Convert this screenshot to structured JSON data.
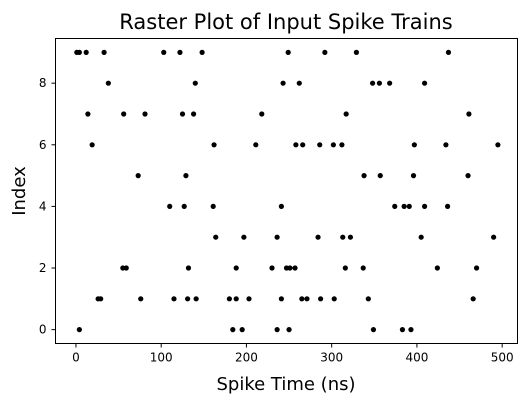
{
  "chart_data": {
    "type": "scatter",
    "title": "Raster Plot of Input Spike Trains",
    "xlabel": "Spike Time (ns)",
    "ylabel": "Index",
    "xlim": [
      -24,
      518
    ],
    "ylim": [
      -0.45,
      9.45
    ],
    "xticks": [
      "0",
      "100",
      "200",
      "300",
      "400",
      "500"
    ],
    "yticks": [
      "0",
      "2",
      "4",
      "6",
      "8"
    ],
    "xtick_values": [
      0,
      100,
      200,
      300,
      400,
      500
    ],
    "ytick_values": [
      0,
      2,
      4,
      6,
      8
    ],
    "grid": false,
    "marker_color": "#000000",
    "series": [
      {
        "values": [
          {
            "x": 1,
            "y": 9
          },
          {
            "x": 4,
            "y": 9
          },
          {
            "x": 12,
            "y": 9
          },
          {
            "x": 33,
            "y": 9
          },
          {
            "x": 103,
            "y": 9
          },
          {
            "x": 122,
            "y": 9
          },
          {
            "x": 148,
            "y": 9
          },
          {
            "x": 249,
            "y": 9
          },
          {
            "x": 292,
            "y": 9
          },
          {
            "x": 329,
            "y": 9
          },
          {
            "x": 437,
            "y": 9
          },
          {
            "x": 38,
            "y": 8
          },
          {
            "x": 140,
            "y": 8
          },
          {
            "x": 243,
            "y": 8
          },
          {
            "x": 262,
            "y": 8
          },
          {
            "x": 348,
            "y": 8
          },
          {
            "x": 356,
            "y": 8
          },
          {
            "x": 368,
            "y": 8
          },
          {
            "x": 409,
            "y": 8
          },
          {
            "x": 14,
            "y": 7
          },
          {
            "x": 56,
            "y": 7
          },
          {
            "x": 81,
            "y": 7
          },
          {
            "x": 125,
            "y": 7
          },
          {
            "x": 138,
            "y": 7
          },
          {
            "x": 218,
            "y": 7
          },
          {
            "x": 317,
            "y": 7
          },
          {
            "x": 461,
            "y": 7
          },
          {
            "x": 19,
            "y": 6
          },
          {
            "x": 162,
            "y": 6
          },
          {
            "x": 211,
            "y": 6
          },
          {
            "x": 258,
            "y": 6
          },
          {
            "x": 266,
            "y": 6
          },
          {
            "x": 286,
            "y": 6
          },
          {
            "x": 302,
            "y": 6
          },
          {
            "x": 312,
            "y": 6
          },
          {
            "x": 397,
            "y": 6
          },
          {
            "x": 434,
            "y": 6
          },
          {
            "x": 495,
            "y": 6
          },
          {
            "x": 73,
            "y": 5
          },
          {
            "x": 129,
            "y": 5
          },
          {
            "x": 338,
            "y": 5
          },
          {
            "x": 357,
            "y": 5
          },
          {
            "x": 396,
            "y": 5
          },
          {
            "x": 460,
            "y": 5
          },
          {
            "x": 110,
            "y": 4
          },
          {
            "x": 127,
            "y": 4
          },
          {
            "x": 161,
            "y": 4
          },
          {
            "x": 241,
            "y": 4
          },
          {
            "x": 374,
            "y": 4
          },
          {
            "x": 385,
            "y": 4
          },
          {
            "x": 391,
            "y": 4
          },
          {
            "x": 409,
            "y": 4
          },
          {
            "x": 436,
            "y": 4
          },
          {
            "x": 164,
            "y": 3
          },
          {
            "x": 197,
            "y": 3
          },
          {
            "x": 236,
            "y": 3
          },
          {
            "x": 284,
            "y": 3
          },
          {
            "x": 313,
            "y": 3
          },
          {
            "x": 322,
            "y": 3
          },
          {
            "x": 405,
            "y": 3
          },
          {
            "x": 490,
            "y": 3
          },
          {
            "x": 55,
            "y": 2
          },
          {
            "x": 59,
            "y": 2
          },
          {
            "x": 132,
            "y": 2
          },
          {
            "x": 188,
            "y": 2
          },
          {
            "x": 230,
            "y": 2
          },
          {
            "x": 247,
            "y": 2
          },
          {
            "x": 251,
            "y": 2
          },
          {
            "x": 257,
            "y": 2
          },
          {
            "x": 316,
            "y": 2
          },
          {
            "x": 337,
            "y": 2
          },
          {
            "x": 424,
            "y": 2
          },
          {
            "x": 470,
            "y": 2
          },
          {
            "x": 26,
            "y": 1
          },
          {
            "x": 29,
            "y": 1
          },
          {
            "x": 76,
            "y": 1
          },
          {
            "x": 115,
            "y": 1
          },
          {
            "x": 131,
            "y": 1
          },
          {
            "x": 141,
            "y": 1
          },
          {
            "x": 180,
            "y": 1
          },
          {
            "x": 188,
            "y": 1
          },
          {
            "x": 203,
            "y": 1
          },
          {
            "x": 241,
            "y": 1
          },
          {
            "x": 265,
            "y": 1
          },
          {
            "x": 271,
            "y": 1
          },
          {
            "x": 287,
            "y": 1
          },
          {
            "x": 303,
            "y": 1
          },
          {
            "x": 343,
            "y": 1
          },
          {
            "x": 466,
            "y": 1
          },
          {
            "x": 4,
            "y": 0
          },
          {
            "x": 184,
            "y": 0
          },
          {
            "x": 195,
            "y": 0
          },
          {
            "x": 236,
            "y": 0
          },
          {
            "x": 250,
            "y": 0
          },
          {
            "x": 349,
            "y": 0
          },
          {
            "x": 383,
            "y": 0
          },
          {
            "x": 393,
            "y": 0
          }
        ]
      }
    ]
  }
}
